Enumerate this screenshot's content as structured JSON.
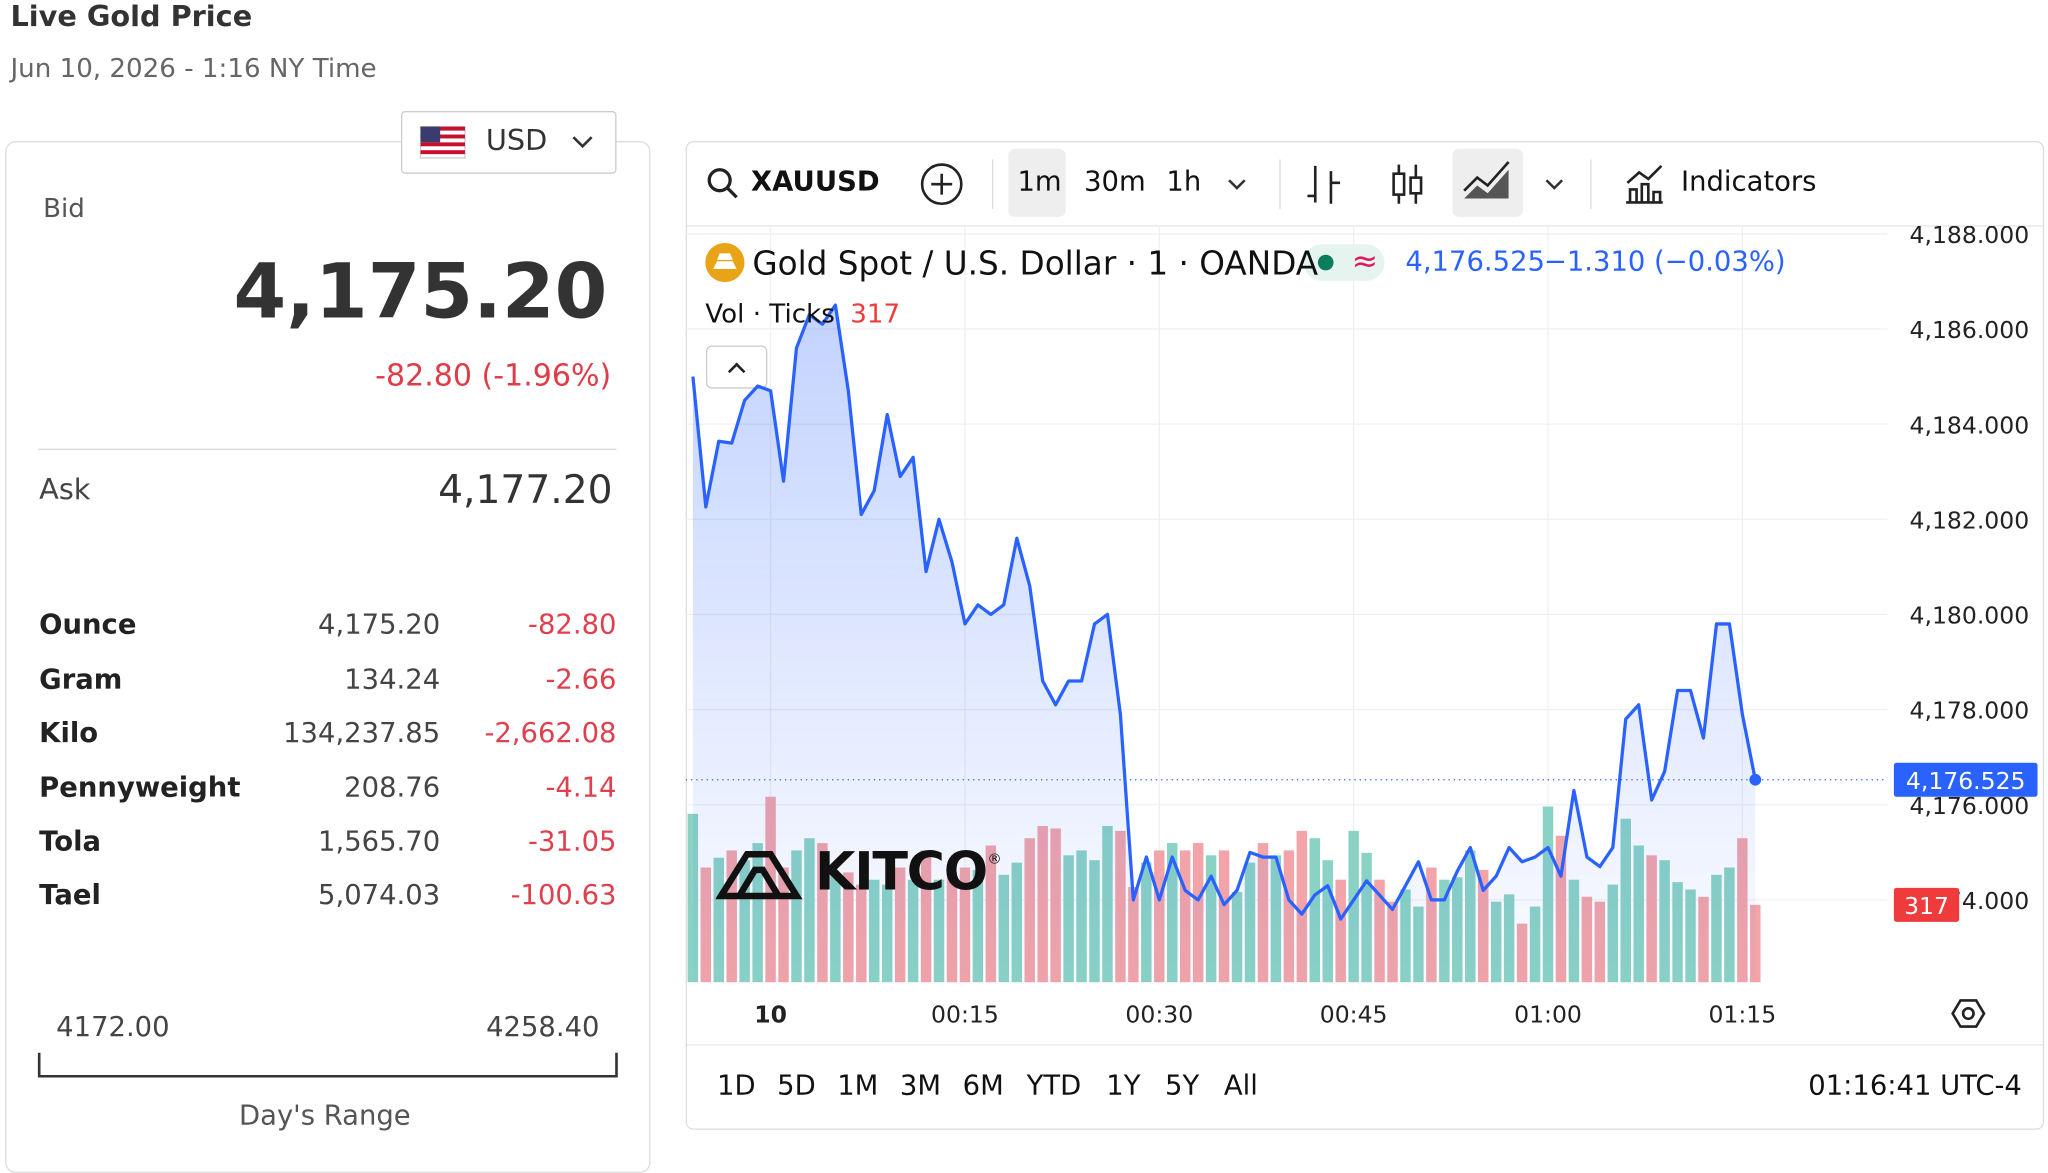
{
  "header": {
    "title": "Live Gold Price",
    "subtitle": "Jun 10, 2026 - 1:16 NY Time"
  },
  "currency": "USD",
  "quote": {
    "bid_label": "Bid",
    "bid": "4,175.20",
    "change": "-82.80 (-1.96%)",
    "ask_label": "Ask",
    "ask": "4,177.20"
  },
  "table": {
    "rows": [
      [
        "Ounce",
        "4,175.20",
        "-82.80"
      ],
      [
        "Gram",
        "134.24",
        "-2.66"
      ],
      [
        "Kilo",
        "134,237.85",
        "-2,662.08"
      ],
      [
        "Pennyweight",
        "208.76",
        "-4.14"
      ],
      [
        "Tola",
        "1,565.70",
        "-31.05"
      ],
      [
        "Tael",
        "5,074.03",
        "-100.63"
      ]
    ]
  },
  "range": {
    "low": "4172.00",
    "high": "4258.40",
    "label": "Day's Range"
  },
  "toolbar": {
    "symbol": "XAUUSD",
    "intervals": [
      "1m",
      "30m",
      "1h"
    ],
    "indicators": "Indicators"
  },
  "footer": {
    "ranges": [
      "1D",
      "5D",
      "1M",
      "3M",
      "6M",
      "YTD",
      "1Y",
      "5Y",
      "All"
    ],
    "time": "01:16:41 UTC-4"
  },
  "chart_data": {
    "type": "line",
    "logo": "KITCO",
    "logo_mark": "®",
    "price_label": "4,176.525",
    "change_label": "−1.310 (−0.03%)",
    "x": [
      -6,
      -5,
      -4,
      -3,
      -2,
      -1,
      0,
      1,
      2,
      3,
      4,
      5,
      6,
      7,
      8,
      9,
      10,
      11,
      12,
      13,
      14,
      15,
      16,
      17,
      18,
      19,
      20,
      21,
      22,
      23,
      24,
      25,
      26,
      27,
      28,
      29,
      30,
      31,
      32,
      33,
      34,
      35,
      36,
      37,
      38,
      39,
      40,
      41,
      42,
      43,
      44,
      45,
      46,
      47,
      48,
      49,
      50,
      51,
      52,
      53,
      54,
      55,
      56,
      57,
      58,
      59,
      60,
      61,
      62,
      63,
      64,
      65,
      66,
      67,
      68,
      69,
      70,
      71,
      72,
      73,
      74,
      75,
      76
    ],
    "series": [
      {
        "name": "Gold Spot / U.S. Dollar · 1 · OANDA",
        "color": "#2962ff",
        "values": [
          4185.0,
          4182.26,
          4183.64,
          4183.6,
          4184.5,
          4184.8,
          4184.7,
          4182.8,
          4185.6,
          4186.3,
          4186.1,
          4186.5,
          4184.7,
          4182.1,
          4182.6,
          4184.2,
          4182.9,
          4183.3,
          4180.9,
          4182.0,
          4181.1,
          4179.8,
          4180.2,
          4180.0,
          4180.2,
          4181.6,
          4180.6,
          4178.6,
          4178.1,
          4178.6,
          4178.6,
          4179.8,
          4180.0,
          4177.9,
          4174.0,
          4174.9,
          4174.0,
          4174.9,
          4174.2,
          4174.0,
          4174.5,
          4173.9,
          4174.2,
          4175.0,
          4174.9,
          4174.9,
          4174.0,
          4173.7,
          4174.1,
          4174.3,
          4173.6,
          4174.0,
          4174.4,
          4174.1,
          4173.8,
          4174.3,
          4174.8,
          4174.0,
          4174.0,
          4174.6,
          4175.1,
          4174.2,
          4174.5,
          4175.1,
          4174.8,
          4174.9,
          4175.1,
          4174.5,
          4176.3,
          4174.9,
          4174.7,
          4175.1,
          4177.8,
          4178.1,
          4176.1,
          4176.7,
          4178.4,
          4178.4,
          4177.4,
          4179.8,
          4179.8,
          4177.9,
          4176.525
        ]
      },
      {
        "name": "Vol · Ticks",
        "type": "bar",
        "up_color": "#8ad2c4",
        "down_color": "#f2a4a8",
        "values": [
          690,
          470,
          510,
          540,
          500,
          570,
          760,
          470,
          540,
          590,
          570,
          440,
          450,
          400,
          420,
          400,
          470,
          420,
          540,
          420,
          450,
          470,
          460,
          560,
          440,
          490,
          590,
          640,
          630,
          520,
          540,
          500,
          640,
          620,
          390,
          490,
          540,
          570,
          540,
          570,
          520,
          540,
          370,
          490,
          570,
          520,
          540,
          620,
          590,
          500,
          420,
          620,
          530,
          420,
          330,
          380,
          310,
          470,
          420,
          430,
          540,
          460,
          330,
          360,
          240,
          310,
          720,
          600,
          420,
          350,
          330,
          400,
          670,
          560,
          520,
          500,
          410,
          380,
          350,
          440,
          470,
          590,
          317
        ]
      }
    ],
    "xlim": [
      -6.55,
      86.19
    ],
    "xticks": [
      {
        "value": 0,
        "label": "10"
      },
      {
        "value": 15,
        "label": "00:15"
      },
      {
        "value": 30,
        "label": "00:30"
      },
      {
        "value": 45,
        "label": "00:45"
      },
      {
        "value": 60,
        "label": "01:00"
      },
      {
        "value": 75,
        "label": "01:15"
      }
    ],
    "ylim": [
      4172.27,
      4188.11
    ],
    "yticks": [
      {
        "value": 4174,
        "label": "4,174.000"
      },
      {
        "value": 4176,
        "label": "4,176.000"
      },
      {
        "value": 4178,
        "label": "4,178.000"
      },
      {
        "value": 4180,
        "label": "4,180.000"
      },
      {
        "value": 4182,
        "label": "4,182.000"
      },
      {
        "value": 4184,
        "label": "4,184.000"
      },
      {
        "value": 4186,
        "label": "4,186.000"
      },
      {
        "value": 4188,
        "label": "4,188.000"
      }
    ],
    "grid": true
  }
}
